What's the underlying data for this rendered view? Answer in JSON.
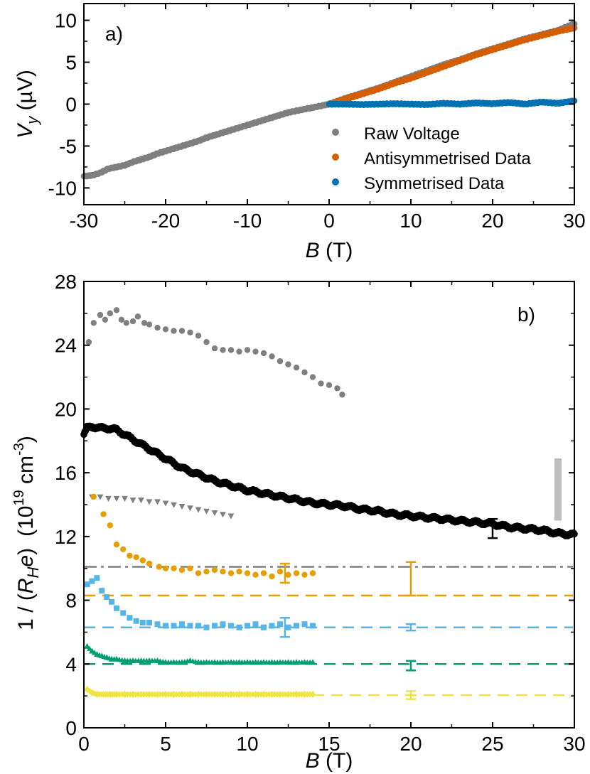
{
  "chart_data": [
    {
      "type": "scatter",
      "panel_label": "a)",
      "xlabel_var": "B",
      "xlabel_unit": " (T)",
      "ylabel_var": "V",
      "ylabel_sub": "y",
      "ylabel_unit": " (µV)",
      "xlim": [
        -30,
        30
      ],
      "ylim": [
        -12,
        12
      ],
      "xticks": [
        -30,
        -20,
        -10,
        0,
        10,
        20,
        30
      ],
      "yticks": [
        -10,
        -5,
        0,
        5,
        10
      ],
      "legend_position": "bottom-right",
      "series": [
        {
          "name": "Raw Voltage",
          "color": "#7f7f7f",
          "x": [
            -30,
            -29,
            -28,
            -27,
            -26,
            -25,
            -24,
            -23,
            -22,
            -21,
            -20,
            -19,
            -18,
            -17,
            -16,
            -15,
            -14,
            -13,
            -12,
            -11,
            -10,
            -9,
            -8,
            -7,
            -6,
            -5,
            -4,
            -3,
            -2,
            -1,
            0,
            2,
            4,
            6,
            8,
            10,
            12,
            14,
            16,
            18,
            20,
            22,
            24,
            26,
            28,
            30
          ],
          "y": [
            -8.6,
            -8.5,
            -8.2,
            -7.7,
            -7.5,
            -7.3,
            -6.9,
            -6.6,
            -6.3,
            -5.9,
            -5.6,
            -5.3,
            -5.0,
            -4.7,
            -4.4,
            -4.0,
            -3.7,
            -3.4,
            -3.1,
            -2.8,
            -2.5,
            -2.2,
            -1.9,
            -1.6,
            -1.3,
            -1.0,
            -0.8,
            -0.6,
            -0.4,
            -0.2,
            0.0,
            0.7,
            1.3,
            1.9,
            2.6,
            3.3,
            4.0,
            4.7,
            5.3,
            6.0,
            6.6,
            7.2,
            7.8,
            8.3,
            8.8,
            9.6
          ]
        },
        {
          "name": "Antisymmetrised Data",
          "color": "#d55e00",
          "x": [
            0,
            2,
            4,
            6,
            8,
            10,
            12,
            14,
            16,
            18,
            20,
            22,
            24,
            26,
            28,
            30
          ],
          "y": [
            0.0,
            0.6,
            1.2,
            1.8,
            2.5,
            3.1,
            3.8,
            4.5,
            5.2,
            5.9,
            6.5,
            7.1,
            7.7,
            8.2,
            8.7,
            9.1
          ]
        },
        {
          "name": "Symmetrised Data",
          "color": "#0072b2",
          "x": [
            0,
            2,
            4,
            6,
            8,
            10,
            12,
            14,
            16,
            18,
            20,
            22,
            24,
            26,
            28,
            30
          ],
          "y": [
            0.0,
            0.0,
            -0.05,
            0.0,
            0.05,
            0.0,
            -0.05,
            0.1,
            0.0,
            0.15,
            0.05,
            0.2,
            0.0,
            0.25,
            0.1,
            0.4
          ]
        }
      ]
    },
    {
      "type": "scatter",
      "panel_label": "b)",
      "xlabel_var": "B",
      "xlabel_unit": " (T)",
      "ylabel_prefix": "1 / (",
      "ylabel_var_r": "R",
      "ylabel_sub": "H",
      "ylabel_var_e": "e",
      "ylabel_close": ")",
      "ylabel_unit_open": "(10",
      "ylabel_unit_exp": "19",
      "ylabel_unit_mid": " cm",
      "ylabel_unit_exp2": "-3",
      "ylabel_unit_close": ")",
      "xlim": [
        0,
        30
      ],
      "ylim": [
        0,
        28
      ],
      "xticks": [
        0,
        5,
        10,
        15,
        20,
        25,
        30
      ],
      "yticks": [
        0,
        4,
        8,
        12,
        16,
        20,
        24,
        28
      ],
      "series": [
        {
          "color": "#7f7f7f",
          "marker": "circle",
          "x": [
            0.3,
            0.6,
            1.0,
            1.3,
            1.6,
            2.0,
            2.3,
            2.6,
            3.0,
            3.3,
            3.7,
            4.0,
            4.5,
            5.0,
            5.5,
            6.0,
            6.5,
            7.0,
            7.5,
            8.0,
            8.5,
            9.0,
            9.5,
            10.0,
            10.5,
            11.0,
            11.5,
            12.0,
            12.5,
            13.0,
            13.5,
            14.0,
            14.5,
            15.0,
            15.5,
            15.8
          ],
          "y": [
            24.2,
            25.4,
            25.9,
            25.6,
            26.0,
            26.2,
            25.6,
            25.4,
            25.5,
            25.8,
            25.4,
            25.3,
            25.1,
            25.0,
            24.9,
            24.9,
            24.8,
            24.6,
            24.2,
            23.8,
            23.7,
            23.7,
            23.6,
            23.7,
            23.6,
            23.5,
            23.3,
            23.0,
            22.8,
            22.6,
            22.3,
            22.0,
            21.6,
            21.5,
            21.3,
            20.9
          ]
        },
        {
          "color": "#000000",
          "marker": "circle",
          "x": [
            0,
            0.2,
            0.5,
            1,
            1.5,
            2,
            2.5,
            3,
            3.5,
            4,
            5,
            6,
            7,
            8,
            9,
            10,
            11,
            12,
            13,
            14,
            15,
            16,
            17,
            18,
            19,
            20,
            21,
            22,
            23,
            24,
            25,
            26,
            27,
            28,
            29,
            30
          ],
          "y": [
            18.4,
            18.8,
            18.9,
            18.8,
            18.8,
            18.7,
            18.4,
            18.1,
            17.8,
            17.5,
            16.9,
            16.3,
            15.9,
            15.5,
            15.2,
            14.9,
            14.7,
            14.5,
            14.3,
            14.1,
            14.0,
            13.9,
            13.7,
            13.6,
            13.4,
            13.3,
            13.2,
            13.1,
            13.0,
            12.9,
            12.8,
            12.6,
            12.5,
            12.4,
            12.2,
            12.1
          ]
        },
        {
          "color": "#7f7f7f",
          "marker": "triangle-down",
          "x": [
            0.5,
            1.0,
            1.5,
            2.0,
            2.5,
            3.0,
            3.5,
            4.0,
            4.5,
            5.0,
            5.5,
            6.0,
            6.5,
            7.0,
            7.5,
            8.0,
            8.5,
            9.0
          ],
          "y": [
            14.5,
            14.5,
            14.4,
            14.4,
            14.4,
            14.3,
            14.3,
            14.2,
            14.2,
            14.1,
            14.0,
            13.9,
            13.8,
            13.7,
            13.6,
            13.5,
            13.4,
            13.3
          ]
        },
        {
          "color": "#e69f00",
          "marker": "circle",
          "x": [
            0.6,
            1.2,
            1.6,
            2.0,
            2.4,
            2.8,
            3.2,
            3.6,
            4.0,
            4.6,
            5.0,
            5.5,
            6.0,
            6.5,
            7.0,
            7.5,
            8.0,
            8.5,
            9.0,
            9.5,
            10.0,
            10.5,
            11.0,
            11.5,
            12.0,
            12.5,
            13.0,
            13.5,
            14.0
          ],
          "y": [
            14.5,
            13.4,
            12.7,
            11.5,
            11.2,
            10.8,
            10.7,
            10.5,
            10.3,
            10.1,
            10.0,
            10.0,
            9.9,
            10.0,
            9.7,
            9.8,
            9.9,
            9.8,
            9.7,
            9.8,
            9.7,
            9.6,
            9.7,
            9.5,
            9.8,
            9.6,
            9.7,
            9.6,
            9.7
          ]
        },
        {
          "color": "#56b4e9",
          "marker": "square",
          "x": [
            0.2,
            0.5,
            0.8,
            1.1,
            1.4,
            1.7,
            2.0,
            2.4,
            2.8,
            3.2,
            3.6,
            4.0,
            4.5,
            5.0,
            5.5,
            6.0,
            6.5,
            7.0,
            7.5,
            8.0,
            8.5,
            9.0,
            9.5,
            10.0,
            10.5,
            11.0,
            11.5,
            12.0,
            12.5,
            13.0,
            13.5,
            14.0
          ],
          "y": [
            9.0,
            9.2,
            9.4,
            8.6,
            8.2,
            7.9,
            7.5,
            7.2,
            6.9,
            6.7,
            6.6,
            6.6,
            6.5,
            6.4,
            6.4,
            6.5,
            6.4,
            6.4,
            6.3,
            6.4,
            6.5,
            6.4,
            6.3,
            6.4,
            6.5,
            6.3,
            6.4,
            6.5,
            6.3,
            6.4,
            6.5,
            6.4
          ]
        },
        {
          "color": "#009e73",
          "marker": "triangle-up",
          "x": [
            0.2,
            0.5,
            0.8,
            1.1,
            1.4,
            1.7,
            2.0,
            2.5,
            3.0,
            3.5,
            4.0,
            4.5,
            5.0,
            5.5,
            6.0,
            6.5,
            7.0,
            7.5,
            8.0,
            8.5,
            9.0,
            9.5,
            10.0,
            10.5,
            11.0,
            11.5,
            12.0,
            12.5,
            13.0,
            13.5,
            14.0
          ],
          "y": [
            5.1,
            4.8,
            4.6,
            4.5,
            4.4,
            4.3,
            4.3,
            4.2,
            4.2,
            4.2,
            4.2,
            4.2,
            4.1,
            4.1,
            4.1,
            4.2,
            4.1,
            4.1,
            4.1,
            4.1,
            4.1,
            4.1,
            4.1,
            4.1,
            4.1,
            4.1,
            4.1,
            4.1,
            4.1,
            4.1,
            4.1
          ]
        },
        {
          "color": "#f0e442",
          "marker": "diamond",
          "x": [
            0.2,
            0.5,
            0.8,
            1.2,
            1.6,
            2.0,
            2.5,
            3.0,
            3.5,
            4.0,
            4.5,
            5.0,
            5.5,
            6.0,
            6.5,
            7.0,
            7.5,
            8.0,
            8.5,
            9.0,
            9.5,
            10.0,
            10.5,
            11.0,
            11.5,
            12.0,
            12.5,
            13.0,
            13.5,
            14.0
          ],
          "y": [
            2.4,
            2.2,
            2.1,
            2.1,
            2.1,
            2.1,
            2.1,
            2.1,
            2.1,
            2.1,
            2.1,
            2.1,
            2.1,
            2.1,
            2.1,
            2.1,
            2.1,
            2.1,
            2.1,
            2.1,
            2.1,
            2.1,
            2.1,
            2.1,
            2.1,
            2.1,
            2.1,
            2.1,
            2.1,
            2.1
          ]
        }
      ],
      "reference_lines": [
        {
          "y": 10.1,
          "color": "#7f7f7f",
          "style": "dash-dot",
          "x_start": 0
        },
        {
          "y": 8.3,
          "color": "#e69f00",
          "style": "dashed",
          "x_start": 0
        },
        {
          "y": 6.3,
          "color": "#56b4e9",
          "style": "dashed",
          "x_start": 0
        },
        {
          "y": 4.0,
          "color": "#009e73",
          "style": "dashed",
          "x_start": 0
        },
        {
          "y": 2.05,
          "color": "#f0e442",
          "style": "dashed",
          "x_start": 14
        }
      ],
      "error_bars": [
        {
          "x": 25,
          "y": 12.5,
          "low": 11.9,
          "high": 13.1,
          "color": "#000000"
        },
        {
          "x": 12.3,
          "y": 9.7,
          "low": 9.1,
          "high": 10.3,
          "color": "#e69f00"
        },
        {
          "x": 20,
          "y": 10.4,
          "low": 8.3,
          "high": 10.4,
          "color": "#e69f00"
        },
        {
          "x": 12.3,
          "y": 6.3,
          "low": 5.7,
          "high": 6.9,
          "color": "#56b4e9"
        },
        {
          "x": 20,
          "y": 6.3,
          "low": 6.1,
          "high": 6.5,
          "color": "#56b4e9"
        },
        {
          "x": 20,
          "y": 3.9,
          "low": 3.6,
          "high": 4.2,
          "color": "#009e73"
        },
        {
          "x": 20,
          "y": 2.05,
          "low": 1.8,
          "high": 2.3,
          "color": "#f0e442"
        }
      ],
      "scale_bar": {
        "x": 29.0,
        "y_low": 13.0,
        "y_high": 16.9,
        "color": "#bdbdbd"
      }
    }
  ]
}
